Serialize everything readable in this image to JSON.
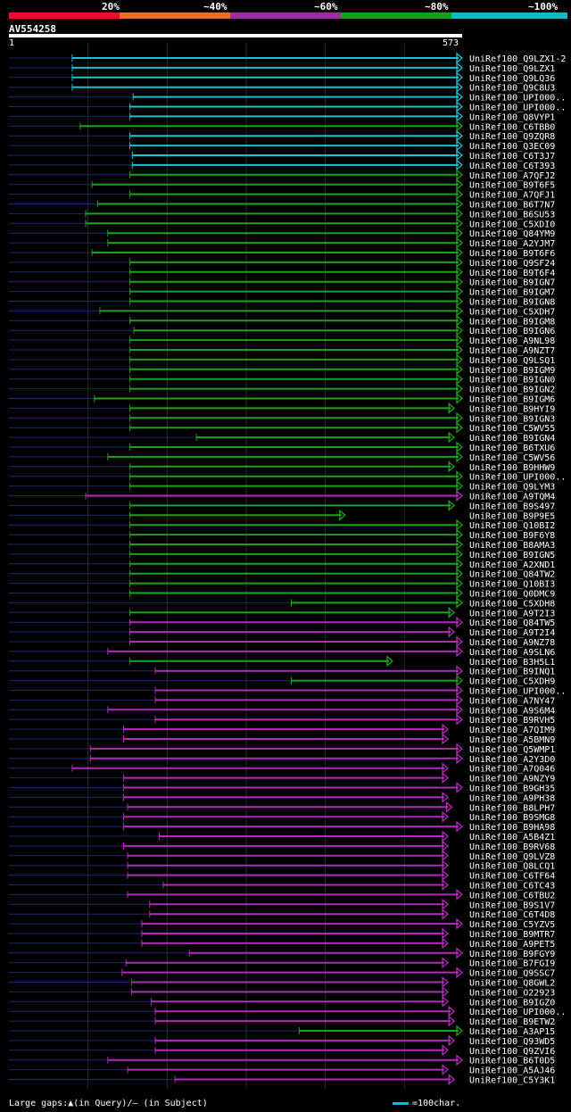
{
  "legend": [
    {
      "label": "20%",
      "color": "#e8102a"
    },
    {
      "label": "~40%",
      "color": "#e87020"
    },
    {
      "label": "~60%",
      "color": "#a02aa0"
    },
    {
      "label": "~80%",
      "color": "#18a018"
    },
    {
      "label": "~100%",
      "color": "#10b8c8"
    }
  ],
  "colors": {
    "cyan": "#19c3d3",
    "green": "#1aa31a",
    "magenta": "#b22ab8",
    "gapline": "#1a2a6a",
    "grid": "#2a2a2a"
  },
  "query": {
    "id": "AV554258",
    "start": "1",
    "end": "573"
  },
  "footer": {
    "gaps_text": "Large gaps:▲(in Query)/— (in Subject)",
    "scale_text": "=100char."
  },
  "chart_data": {
    "type": "alignment-overview",
    "query_length": 573,
    "hits": [
      {
        "label": "UniRef100_Q9LZX1-2",
        "start": 80,
        "end": 573,
        "color": "cyan",
        "arrow": true
      },
      {
        "label": "UniRef100_Q9LZX1",
        "start": 80,
        "end": 573,
        "color": "cyan",
        "arrow": true
      },
      {
        "label": "UniRef100_Q9LQ36",
        "start": 80,
        "end": 573,
        "color": "cyan",
        "arrow": true
      },
      {
        "label": "UniRef100_Q9C8U3",
        "start": 80,
        "end": 573,
        "color": "cyan",
        "arrow": true
      },
      {
        "label": "UniRef100_UPI000..",
        "start": 157,
        "end": 573,
        "color": "cyan",
        "arrow": true
      },
      {
        "label": "UniRef100_UPI000..",
        "start": 153,
        "end": 573,
        "color": "cyan",
        "arrow": true
      },
      {
        "label": "UniRef100_Q8VYP1",
        "start": 153,
        "end": 573,
        "color": "cyan",
        "arrow": true
      },
      {
        "label": "UniRef100_C6TBB0",
        "start": 90,
        "end": 573,
        "color": "green",
        "arrow": true
      },
      {
        "label": "UniRef100_Q9ZQR8",
        "start": 153,
        "end": 573,
        "color": "cyan",
        "arrow": true
      },
      {
        "label": "UniRef100_Q3EC09",
        "start": 153,
        "end": 573,
        "color": "cyan",
        "arrow": true
      },
      {
        "label": "UniRef100_C6T3J7",
        "start": 156,
        "end": 573,
        "color": "cyan",
        "arrow": true
      },
      {
        "label": "UniRef100_C6T393",
        "start": 156,
        "end": 573,
        "color": "cyan",
        "arrow": true
      },
      {
        "label": "UniRef100_A7QFJ2",
        "start": 153,
        "end": 573,
        "color": "green",
        "arrow": true
      },
      {
        "label": "UniRef100_B9T6F5",
        "start": 105,
        "end": 573,
        "color": "green",
        "arrow": true
      },
      {
        "label": "UniRef100_A7QFJ1",
        "start": 153,
        "end": 573,
        "color": "green",
        "arrow": true
      },
      {
        "label": "UniRef100_B6T7N7",
        "start": 112,
        "end": 573,
        "color": "green",
        "arrow": true
      },
      {
        "label": "UniRef100_B6SU53",
        "start": 97,
        "end": 573,
        "color": "green",
        "arrow": true
      },
      {
        "label": "UniRef100_C5XDI0",
        "start": 97,
        "end": 573,
        "color": "green",
        "arrow": true
      },
      {
        "label": "UniRef100_Q84YM9",
        "start": 125,
        "end": 573,
        "color": "green",
        "arrow": true
      },
      {
        "label": "UniRef100_A2YJM7",
        "start": 125,
        "end": 573,
        "color": "green",
        "arrow": true
      },
      {
        "label": "UniRef100_B9T6F6",
        "start": 105,
        "end": 573,
        "color": "green",
        "arrow": true
      },
      {
        "label": "UniRef100_Q9SF24",
        "start": 153,
        "end": 573,
        "color": "green",
        "arrow": true
      },
      {
        "label": "UniRef100_B9T6F4",
        "start": 153,
        "end": 573,
        "color": "green",
        "arrow": true
      },
      {
        "label": "UniRef100_B9IGN7",
        "start": 153,
        "end": 573,
        "color": "green",
        "arrow": true
      },
      {
        "label": "UniRef100_B9IGM7",
        "start": 153,
        "end": 573,
        "color": "green",
        "arrow": true
      },
      {
        "label": "UniRef100_B9IGN8",
        "start": 153,
        "end": 573,
        "color": "green",
        "arrow": true
      },
      {
        "label": "UniRef100_C5XDH7",
        "start": 115,
        "end": 573,
        "color": "green",
        "arrow": true
      },
      {
        "label": "UniRef100_B9IGM8",
        "start": 153,
        "end": 573,
        "color": "green",
        "arrow": true
      },
      {
        "label": "UniRef100_B9IGN6",
        "start": 158,
        "end": 573,
        "color": "green",
        "arrow": true
      },
      {
        "label": "UniRef100_A9NL98",
        "start": 153,
        "end": 573,
        "color": "green",
        "arrow": true
      },
      {
        "label": "UniRef100_A9NZT7",
        "start": 153,
        "end": 573,
        "color": "green",
        "arrow": true
      },
      {
        "label": "UniRef100_Q9LSQ1",
        "start": 153,
        "end": 573,
        "color": "green",
        "arrow": true
      },
      {
        "label": "UniRef100_B9IGM9",
        "start": 153,
        "end": 573,
        "color": "green",
        "arrow": true
      },
      {
        "label": "UniRef100_B9IGN0",
        "start": 153,
        "end": 573,
        "color": "green",
        "arrow": true
      },
      {
        "label": "UniRef100_B9IGN2",
        "start": 153,
        "end": 573,
        "color": "green",
        "arrow": true
      },
      {
        "label": "UniRef100_B9IGM6",
        "start": 108,
        "end": 573,
        "color": "green",
        "arrow": true
      },
      {
        "label": "UniRef100_B9HYI9",
        "start": 153,
        "end": 563,
        "color": "green",
        "arrow": true
      },
      {
        "label": "UniRef100_B9IGN3",
        "start": 153,
        "end": 573,
        "color": "green",
        "arrow": true
      },
      {
        "label": "UniRef100_C5WV55",
        "start": 153,
        "end": 573,
        "color": "green",
        "arrow": true
      },
      {
        "label": "UniRef100_B9IGN4",
        "start": 237,
        "end": 563,
        "color": "green",
        "arrow": true
      },
      {
        "label": "UniRef100_B6TXU6",
        "start": 153,
        "end": 573,
        "color": "green",
        "arrow": true
      },
      {
        "label": "UniRef100_C5WV56",
        "start": 125,
        "end": 573,
        "color": "green",
        "arrow": true
      },
      {
        "label": "UniRef100_B9HHW9",
        "start": 153,
        "end": 563,
        "color": "green",
        "arrow": true
      },
      {
        "label": "UniRef100_UPI000..",
        "start": 153,
        "end": 573,
        "color": "green",
        "arrow": true
      },
      {
        "label": "UniRef100_Q9LYM3",
        "start": 153,
        "end": 573,
        "color": "green",
        "arrow": true
      },
      {
        "label": "UniRef100_A9TQM4",
        "start": 97,
        "end": 573,
        "color": "magenta",
        "arrow": true
      },
      {
        "label": "UniRef100_B9S497",
        "start": 153,
        "end": 563,
        "color": "green",
        "arrow": true
      },
      {
        "label": "UniRef100_B9P9E5",
        "start": 153,
        "end": 425,
        "color": "green",
        "arrow": true
      },
      {
        "label": "UniRef100_Q10BI2",
        "start": 153,
        "end": 573,
        "color": "green",
        "arrow": true
      },
      {
        "label": "UniRef100_B9F6Y8",
        "start": 153,
        "end": 573,
        "color": "green",
        "arrow": true
      },
      {
        "label": "UniRef100_B8AMA3",
        "start": 153,
        "end": 573,
        "color": "green",
        "arrow": true
      },
      {
        "label": "UniRef100_B9IGN5",
        "start": 153,
        "end": 573,
        "color": "green",
        "arrow": true
      },
      {
        "label": "UniRef100_A2XND1",
        "start": 153,
        "end": 573,
        "color": "green",
        "arrow": true
      },
      {
        "label": "UniRef100_Q84TW2",
        "start": 153,
        "end": 573,
        "color": "green",
        "arrow": true
      },
      {
        "label": "UniRef100_Q10BI3",
        "start": 153,
        "end": 573,
        "color": "green",
        "arrow": true
      },
      {
        "label": "UniRef100_Q0DMC9",
        "start": 153,
        "end": 573,
        "color": "green",
        "arrow": true
      },
      {
        "label": "UniRef100_C5XDH8",
        "start": 357,
        "end": 573,
        "color": "green",
        "arrow": true
      },
      {
        "label": "UniRef100_A9T2I3",
        "start": 153,
        "end": 563,
        "color": "green",
        "arrow": true
      },
      {
        "label": "UniRef100_Q84TW5",
        "start": 153,
        "end": 573,
        "color": "magenta",
        "arrow": true
      },
      {
        "label": "UniRef100_A9T2I4",
        "start": 153,
        "end": 563,
        "color": "magenta",
        "arrow": true
      },
      {
        "label": "UniRef100_A9NZ78",
        "start": 153,
        "end": 573,
        "color": "magenta",
        "arrow": true
      },
      {
        "label": "UniRef100_A9SLN6",
        "start": 125,
        "end": 573,
        "color": "magenta",
        "arrow": true
      },
      {
        "label": "UniRef100_B3H5L1",
        "start": 153,
        "end": 485,
        "color": "green",
        "arrow": true
      },
      {
        "label": "UniRef100_B9INQ1",
        "start": 185,
        "end": 573,
        "color": "magenta",
        "arrow": true
      },
      {
        "label": "UniRef100_C5XDH9",
        "start": 357,
        "end": 573,
        "color": "green",
        "arrow": true
      },
      {
        "label": "UniRef100_UPI000..",
        "start": 185,
        "end": 573,
        "color": "magenta",
        "arrow": true
      },
      {
        "label": "UniRef100_A7NY47",
        "start": 185,
        "end": 573,
        "color": "magenta",
        "arrow": true
      },
      {
        "label": "UniRef100_A9S6M4",
        "start": 125,
        "end": 573,
        "color": "magenta",
        "arrow": true
      },
      {
        "label": "UniRef100_B9RVH5",
        "start": 185,
        "end": 573,
        "color": "magenta",
        "arrow": true
      },
      {
        "label": "UniRef100_A7QIM9",
        "start": 145,
        "end": 555,
        "color": "magenta",
        "arrow": true
      },
      {
        "label": "UniRef100_A5BMN9",
        "start": 145,
        "end": 555,
        "color": "magenta",
        "arrow": true
      },
      {
        "label": "UniRef100_Q5WMP1",
        "start": 103,
        "end": 573,
        "color": "magenta",
        "arrow": true
      },
      {
        "label": "UniRef100_A2Y3D0",
        "start": 103,
        "end": 573,
        "color": "magenta",
        "arrow": true
      },
      {
        "label": "UniRef100_A7Q046",
        "start": 80,
        "end": 555,
        "color": "magenta",
        "arrow": true
      },
      {
        "label": "UniRef100_A9NZY9",
        "start": 145,
        "end": 555,
        "color": "magenta",
        "arrow": true
      },
      {
        "label": "UniRef100_B9GH35",
        "start": 145,
        "end": 573,
        "color": "magenta",
        "arrow": true
      },
      {
        "label": "UniRef100_A9PH38",
        "start": 145,
        "end": 555,
        "color": "magenta",
        "arrow": true
      },
      {
        "label": "UniRef100_B8LPH7",
        "start": 150,
        "end": 560,
        "color": "magenta",
        "arrow": true
      },
      {
        "label": "UniRef100_B9SMG8",
        "start": 145,
        "end": 555,
        "color": "magenta",
        "arrow": true
      },
      {
        "label": "UniRef100_B9HA98",
        "start": 145,
        "end": 573,
        "color": "magenta",
        "arrow": true
      },
      {
        "label": "UniRef100_A5B4Z1",
        "start": 190,
        "end": 555,
        "color": "magenta",
        "arrow": true
      },
      {
        "label": "UniRef100_B9RV68",
        "start": 145,
        "end": 555,
        "color": "magenta",
        "arrow": true
      },
      {
        "label": "UniRef100_Q9LVZ8",
        "start": 150,
        "end": 555,
        "color": "magenta",
        "arrow": true
      },
      {
        "label": "UniRef100_Q8LCQ1",
        "start": 150,
        "end": 555,
        "color": "magenta",
        "arrow": true
      },
      {
        "label": "UniRef100_C6TF64",
        "start": 150,
        "end": 555,
        "color": "magenta",
        "arrow": true
      },
      {
        "label": "UniRef100_C6TC43",
        "start": 195,
        "end": 555,
        "color": "magenta",
        "arrow": true
      },
      {
        "label": "UniRef100_C6TBU2",
        "start": 150,
        "end": 573,
        "color": "magenta",
        "arrow": true
      },
      {
        "label": "UniRef100_B9S1V7",
        "start": 178,
        "end": 555,
        "color": "magenta",
        "arrow": true
      },
      {
        "label": "UniRef100_C6T4D8",
        "start": 178,
        "end": 555,
        "color": "magenta",
        "arrow": true
      },
      {
        "label": "UniRef100_C5YZV5",
        "start": 168,
        "end": 573,
        "color": "magenta",
        "arrow": true
      },
      {
        "label": "UniRef100_B9MTR7",
        "start": 168,
        "end": 555,
        "color": "magenta",
        "arrow": true
      },
      {
        "label": "UniRef100_A9PET5",
        "start": 168,
        "end": 555,
        "color": "magenta",
        "arrow": true
      },
      {
        "label": "UniRef100_B9FGY9",
        "start": 228,
        "end": 573,
        "color": "magenta",
        "arrow": true
      },
      {
        "label": "UniRef100_B7FGI9",
        "start": 148,
        "end": 555,
        "color": "magenta",
        "arrow": true
      },
      {
        "label": "UniRef100_Q9SSC7",
        "start": 143,
        "end": 573,
        "color": "magenta",
        "arrow": true
      },
      {
        "label": "UniRef100_Q8GWL2",
        "start": 155,
        "end": 555,
        "color": "magenta",
        "arrow": true
      },
      {
        "label": "UniRef100_O22923",
        "start": 155,
        "end": 555,
        "color": "magenta",
        "arrow": true
      },
      {
        "label": "UniRef100_B9IGZ0",
        "start": 180,
        "end": 555,
        "color": "magenta",
        "arrow": true
      },
      {
        "label": "UniRef100_UPI000..",
        "start": 185,
        "end": 563,
        "color": "magenta",
        "arrow": true
      },
      {
        "label": "UniRef100_B9ETW2",
        "start": 185,
        "end": 563,
        "color": "magenta",
        "arrow": true
      },
      {
        "label": "UniRef100_A3AP15",
        "start": 367,
        "end": 573,
        "color": "green",
        "arrow": true
      },
      {
        "label": "UniRef100_Q93WD5",
        "start": 185,
        "end": 563,
        "color": "magenta",
        "arrow": true
      },
      {
        "label": "UniRef100_Q9ZVI6",
        "start": 185,
        "end": 555,
        "color": "magenta",
        "arrow": true
      },
      {
        "label": "UniRef100_B6T0D5",
        "start": 125,
        "end": 573,
        "color": "magenta",
        "arrow": true
      },
      {
        "label": "UniRef100_A5AJ46",
        "start": 150,
        "end": 555,
        "color": "magenta",
        "arrow": true
      },
      {
        "label": "UniRef100_C5Y3K1",
        "start": 210,
        "end": 563,
        "color": "magenta",
        "arrow": true
      }
    ]
  }
}
